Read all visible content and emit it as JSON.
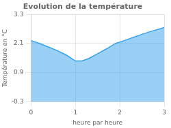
{
  "chart_data": {
    "type": "area",
    "title": "Evolution de la température",
    "xlabel": "heure par heure",
    "ylabel": "Température en °C",
    "x": [
      0,
      0.2,
      0.4,
      0.6,
      0.8,
      1.0,
      1.15,
      1.3,
      1.5,
      1.7,
      1.9,
      2.1,
      2.3,
      2.5,
      2.7,
      3.0
    ],
    "values": [
      2.22,
      2.1,
      1.95,
      1.8,
      1.62,
      1.38,
      1.38,
      1.48,
      1.68,
      1.88,
      2.1,
      2.22,
      2.35,
      2.48,
      2.6,
      2.76
    ],
    "xlim": [
      0,
      3
    ],
    "xticks": [
      0,
      1,
      2,
      3
    ],
    "ylim": [
      -0.3,
      3.3
    ],
    "yticks": [
      -0.3,
      0.9,
      2.1,
      3.3
    ],
    "grid": true
  }
}
